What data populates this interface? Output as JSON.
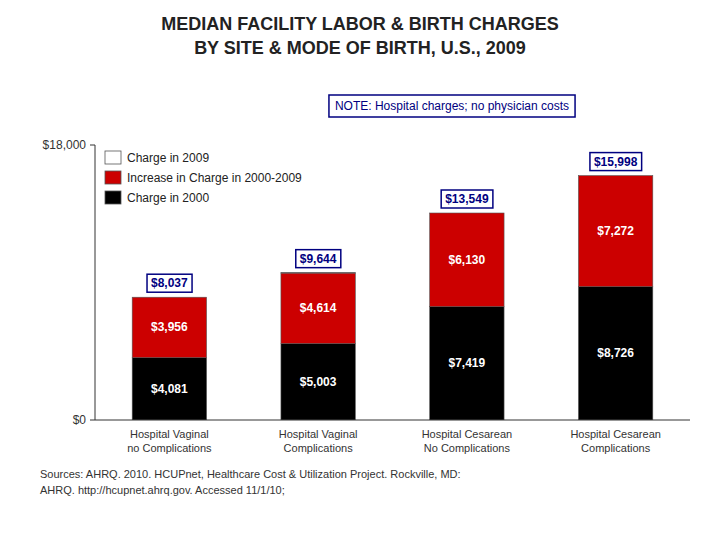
{
  "chart_data": {
    "type": "bar",
    "stacked": true,
    "title": "MEDIAN FACILITY LABOR & BIRTH CHARGES",
    "subtitle": "BY SITE & MODE OF BIRTH, U.S., 2009",
    "annotations": [
      "NOTE: Hospital charges; no physician costs",
      "Sources: AHRQ. 2010. HCUPnet, Healthcare Cost & Utilization Project. Rockville, MD:",
      "AHRQ. http://hcupnet.ahrq.gov.  Accessed 11/1/10;"
    ],
    "categories": [
      "Hospital Vaginal\nno Complications",
      "Hospital Vaginal\nComplications",
      "Hospital Cesarean\nNo Complications",
      "Hospital Cesarean\nComplications"
    ],
    "series": [
      {
        "name": "Charge in 2000",
        "color": "#000000",
        "values": [
          4081,
          5003,
          7419,
          8726
        ],
        "data_labels": true,
        "value_labels": [
          "$4,081",
          "$5,003",
          "$7,419",
          "$8,726"
        ]
      },
      {
        "name": "Increase in Charge in 2000-2009",
        "color": "#cc0000",
        "values": [
          3956,
          4614,
          6130,
          7272
        ],
        "data_labels": true,
        "value_labels": [
          "$3,956",
          "$4,614",
          "$6,130",
          "$7,272"
        ]
      },
      {
        "name": "Charge in 2009",
        "color": "#ffffff",
        "values": [
          0,
          27,
          0,
          0
        ]
      }
    ],
    "totals": [
      8037,
      9644,
      13549,
      15998
    ],
    "total_labels": [
      "$8,037",
      "$9,644",
      "$13,549",
      "$15,998"
    ],
    "ylim": [
      0,
      18000
    ],
    "yticks": [
      {
        "value": 0,
        "label": "$0"
      },
      {
        "value": 18000,
        "label": "$18,000"
      }
    ],
    "grid": false,
    "legend": "upper left"
  }
}
